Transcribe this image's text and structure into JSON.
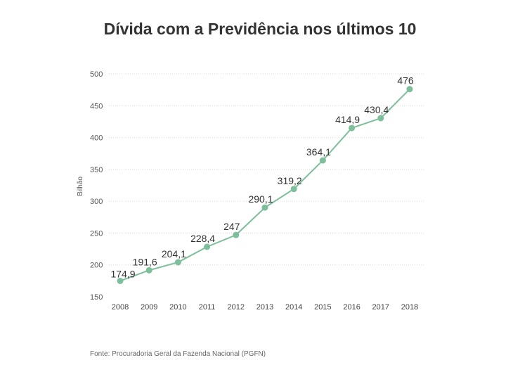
{
  "chart_data": {
    "type": "line",
    "title": "Dívida com a Previdência nos últimos 10",
    "ylabel": "Bilhão",
    "xlabel": "",
    "categories": [
      "2008",
      "2009",
      "2010",
      "2011",
      "2012",
      "2013",
      "2014",
      "2015",
      "2016",
      "2017",
      "2018"
    ],
    "values": [
      174.9,
      191.6,
      204.1,
      228.4,
      247,
      290.1,
      319.2,
      364.1,
      414.9,
      430.4,
      476
    ],
    "value_labels": [
      "174,9",
      "191,6",
      "204,1",
      "228,4",
      "247",
      "290,1",
      "319,2",
      "364,1",
      "414,9",
      "430,4",
      "476"
    ],
    "yticks": [
      150,
      200,
      250,
      300,
      350,
      400,
      450,
      500
    ],
    "ylim": [
      150,
      500
    ],
    "grid": true,
    "line_color": "#7dbf9a",
    "source": "Fonte: Procuradoria Geral da Fazenda Nacional (PGFN)"
  }
}
